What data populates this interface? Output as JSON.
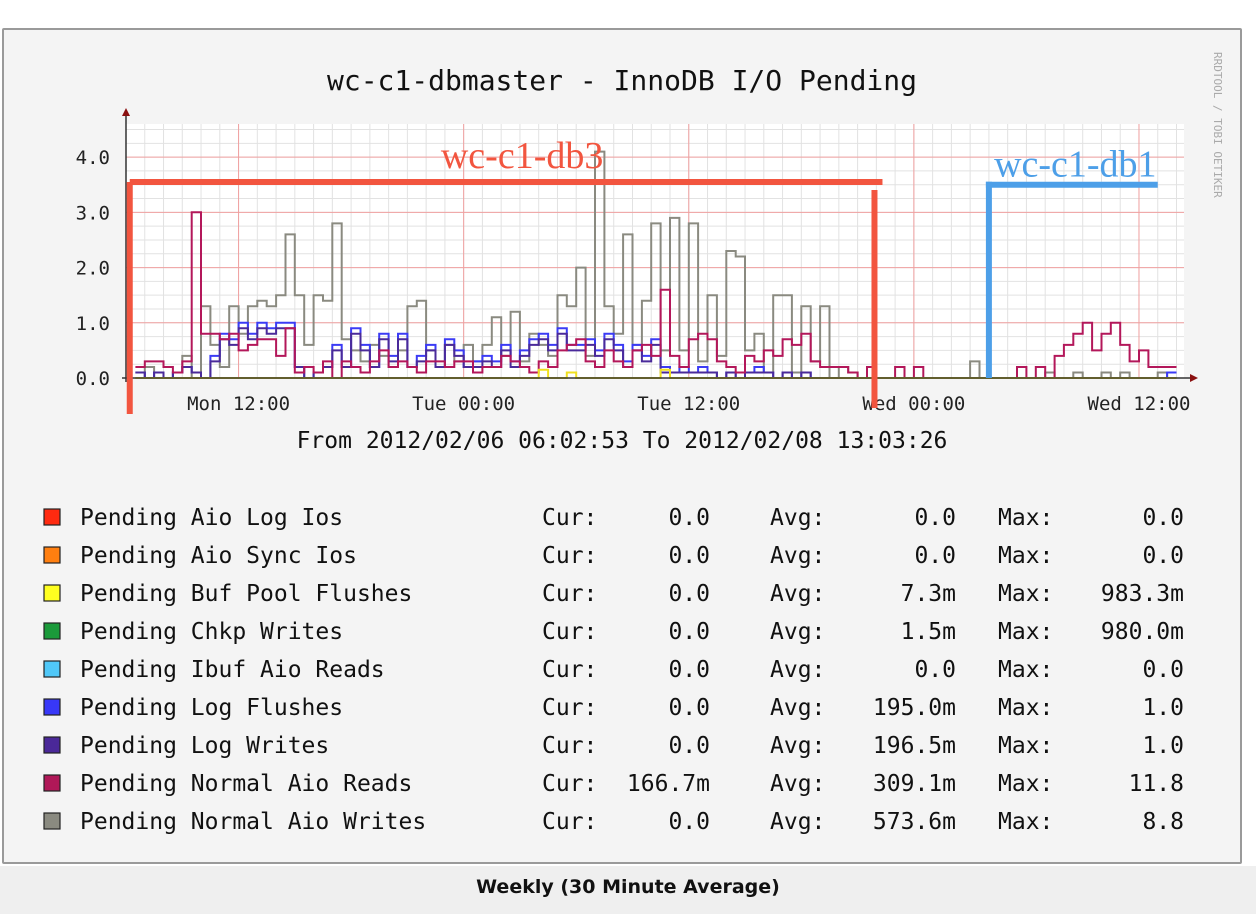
{
  "footer_label": "Weekly (30 Minute Average)",
  "chart_data": {
    "type": "line",
    "title": "wc-c1-dbmaster - InnoDB I/O Pending",
    "watermark": "RRDTOOL / TOBI OETIKER",
    "subtitle": "From 2012/02/06 06:02:53 To 2012/02/08 13:03:26",
    "ylim": [
      0,
      4.6
    ],
    "yticks": [
      "0.0",
      "1.0",
      "2.0",
      "3.0",
      "4.0"
    ],
    "xticks": [
      "Mon 12:00",
      "Tue 00:00",
      "Tue 12:00",
      "Wed 00:00",
      "Wed 12:00"
    ],
    "xtick_hours": [
      30,
      42,
      54,
      66,
      78
    ],
    "xlim_hours": [
      24,
      80.4
    ],
    "grid": true,
    "annotations": [
      {
        "label": "wc-c1-db3",
        "color": "#f2553f",
        "from_hour": 24.2,
        "to_hour": 63.9,
        "level": 3.55
      },
      {
        "label": "wc-c1-db1",
        "color": "#4d9fe8",
        "from_hour": 70.0,
        "to_hour": 79.0,
        "level": 3.5
      }
    ],
    "x_hours": [
      24.5,
      25.0,
      25.5,
      26.0,
      26.5,
      27.0,
      27.5,
      28.0,
      28.5,
      29.0,
      29.5,
      30.0,
      30.5,
      31.0,
      31.5,
      32.0,
      32.5,
      33.0,
      33.5,
      34.0,
      34.5,
      35.0,
      35.5,
      36.0,
      36.5,
      37.0,
      37.5,
      38.0,
      38.5,
      39.0,
      39.5,
      40.0,
      40.5,
      41.0,
      41.5,
      42.0,
      42.5,
      43.0,
      43.5,
      44.0,
      44.5,
      45.0,
      45.5,
      46.0,
      46.5,
      47.0,
      47.5,
      48.0,
      48.5,
      49.0,
      49.5,
      50.0,
      50.5,
      51.0,
      51.5,
      52.0,
      52.5,
      53.0,
      53.5,
      54.0,
      54.5,
      55.0,
      55.5,
      56.0,
      56.5,
      57.0,
      57.5,
      58.0,
      58.5,
      59.0,
      59.5,
      60.0,
      60.5,
      61.0,
      61.5,
      62.0,
      62.5,
      63.0,
      63.5,
      64.0,
      64.5,
      65.0,
      65.5,
      66.0,
      66.5,
      67.0,
      67.5,
      68.0,
      68.5,
      69.0,
      69.5,
      70.0,
      70.5,
      71.0,
      71.5,
      72.0,
      72.5,
      73.0,
      73.5,
      74.0,
      74.5,
      75.0,
      75.5,
      76.0,
      76.5,
      77.0,
      77.5,
      78.0,
      78.5,
      79.0,
      79.5,
      80.0
    ],
    "series": [
      {
        "name": "Pending Normal Aio Writes",
        "color": "#8a8a80",
        "values": [
          0.0,
          0.2,
          0.1,
          0.0,
          0.1,
          0.4,
          0.0,
          1.3,
          0.6,
          0.2,
          1.3,
          0.8,
          1.3,
          1.4,
          1.3,
          1.5,
          2.6,
          1.5,
          0.6,
          1.5,
          1.4,
          2.8,
          0.7,
          0.5,
          0.3,
          0.6,
          0.4,
          0.2,
          0.5,
          1.3,
          1.4,
          0.5,
          0.2,
          0.6,
          0.3,
          0.6,
          0.3,
          0.6,
          1.1,
          0.4,
          1.2,
          0.3,
          0.8,
          0.6,
          0.4,
          1.5,
          1.3,
          2.0,
          0.4,
          4.1,
          1.3,
          0.8,
          2.6,
          0.6,
          1.4,
          2.8,
          0.5,
          2.9,
          0.5,
          2.8,
          0.3,
          1.5,
          0.4,
          2.3,
          2.2,
          0.5,
          0.8,
          0.1,
          1.5,
          1.5,
          0.1,
          1.3,
          0.3,
          1.3,
          0.0,
          0.2,
          0.1,
          0.0,
          0.0,
          0.0,
          0.0,
          0.0,
          0.0,
          0.0,
          0.0,
          0.0,
          0.0,
          0.0,
          0.0,
          0.3,
          0.0,
          0.0,
          0.0,
          0.0,
          0.0,
          0.0,
          0.0,
          0.1,
          0.0,
          0.0,
          0.1,
          0.0,
          0.0,
          0.1,
          0.0,
          0.1,
          0.0,
          0.0,
          0.0,
          0.1,
          0.0
        ]
      },
      {
        "name": "Pending Log Flushes",
        "color": "#3b3bf5",
        "values": [
          0.1,
          0.0,
          0.1,
          0.0,
          0.1,
          0.2,
          0.1,
          0.0,
          0.4,
          0.8,
          0.7,
          1.0,
          0.8,
          1.0,
          0.9,
          1.0,
          1.0,
          0.2,
          0.0,
          0.1,
          0.2,
          0.6,
          0.2,
          0.9,
          0.6,
          0.2,
          0.8,
          0.4,
          0.8,
          0.2,
          0.4,
          0.6,
          0.2,
          0.7,
          0.5,
          0.2,
          0.3,
          0.4,
          0.3,
          0.6,
          0.3,
          0.5,
          0.7,
          0.8,
          0.6,
          0.9,
          0.6,
          0.6,
          0.7,
          0.5,
          0.8,
          0.6,
          0.3,
          0.6,
          0.4,
          0.7,
          0.2,
          0.1,
          0.2,
          0.1,
          0.2,
          0.1,
          0.0,
          0.1,
          0.0,
          0.1,
          0.2,
          0.1,
          0.0,
          0.1,
          0.0,
          0.1,
          0.0,
          0.0,
          0.0,
          0.0,
          0.0,
          0.0,
          0.0,
          0.0,
          0.0,
          0.0,
          0.0,
          0.0,
          0.0,
          0.0,
          0.0,
          0.0,
          0.0,
          0.0,
          0.0,
          0.0,
          0.0,
          0.0,
          0.0,
          0.0,
          0.0,
          0.0,
          0.0,
          0.0,
          0.0,
          0.0,
          0.0,
          0.0,
          0.0,
          0.0,
          0.0,
          0.0,
          0.0,
          0.0,
          0.1
        ]
      },
      {
        "name": "Pending Log Writes",
        "color": "#4a2a9a",
        "values": [
          0.1,
          0.0,
          0.1,
          0.0,
          0.1,
          0.2,
          0.1,
          0.0,
          0.3,
          0.7,
          0.6,
          0.9,
          0.7,
          0.9,
          0.8,
          0.9,
          0.9,
          0.2,
          0.0,
          0.1,
          0.2,
          0.5,
          0.2,
          0.8,
          0.5,
          0.2,
          0.7,
          0.3,
          0.7,
          0.2,
          0.3,
          0.5,
          0.2,
          0.6,
          0.4,
          0.2,
          0.2,
          0.3,
          0.2,
          0.5,
          0.2,
          0.4,
          0.6,
          0.7,
          0.5,
          0.8,
          0.5,
          0.5,
          0.6,
          0.4,
          0.7,
          0.5,
          0.2,
          0.5,
          0.3,
          0.6,
          0.1,
          0.1,
          0.1,
          0.1,
          0.1,
          0.1,
          0.0,
          0.1,
          0.0,
          0.1,
          0.1,
          0.1,
          0.0,
          0.1,
          0.0,
          0.1,
          0.0,
          0.0,
          0.0,
          0.0,
          0.0,
          0.0,
          0.0,
          0.0,
          0.0,
          0.0,
          0.0,
          0.0,
          0.0,
          0.0,
          0.0,
          0.0,
          0.0,
          0.0,
          0.0,
          0.0,
          0.0,
          0.0,
          0.0,
          0.0,
          0.0,
          0.0,
          0.0,
          0.0,
          0.0,
          0.0,
          0.0,
          0.0,
          0.0,
          0.0,
          0.0,
          0.0,
          0.0,
          0.0,
          0.0
        ]
      },
      {
        "name": "Pending Normal Aio Reads",
        "color": "#b3175a",
        "values": [
          0.2,
          0.3,
          0.3,
          0.2,
          0.1,
          0.3,
          3.0,
          0.8,
          0.8,
          0.7,
          0.8,
          0.5,
          0.6,
          0.7,
          0.7,
          0.4,
          0.9,
          0.1,
          0.2,
          0.1,
          0.3,
          0.0,
          0.3,
          0.2,
          0.1,
          0.3,
          0.5,
          0.2,
          0.3,
          0.2,
          0.1,
          0.3,
          0.3,
          0.2,
          0.3,
          0.3,
          0.1,
          0.2,
          0.2,
          0.4,
          0.3,
          0.2,
          0.1,
          0.3,
          0.2,
          0.5,
          0.6,
          0.7,
          0.3,
          0.2,
          0.5,
          0.3,
          0.2,
          0.5,
          0.6,
          0.4,
          1.6,
          0.4,
          0.2,
          0.7,
          0.8,
          0.7,
          0.3,
          0.2,
          0.1,
          0.4,
          0.3,
          0.5,
          0.4,
          0.7,
          0.6,
          0.8,
          0.3,
          0.2,
          0.2,
          0.2,
          0.1,
          0.0,
          0.2,
          0.0,
          0.0,
          0.2,
          0.0,
          0.2,
          0.0,
          0.0,
          0.0,
          0.0,
          0.0,
          0.0,
          0.0,
          0.0,
          0.0,
          0.0,
          0.2,
          0.0,
          0.2,
          0.0,
          0.4,
          0.6,
          0.8,
          1.0,
          0.5,
          0.8,
          1.0,
          0.6,
          0.3,
          0.5,
          0.2,
          0.2,
          0.2
        ]
      },
      {
        "name": "Pending Buf Pool Flushes",
        "color": "#f0e020",
        "values": [
          0.0,
          0.0,
          0.0,
          0.0,
          0.0,
          0.0,
          0.0,
          0.0,
          0.0,
          0.0,
          0.0,
          0.0,
          0.0,
          0.0,
          0.0,
          0.0,
          0.0,
          0.0,
          0.0,
          0.0,
          0.0,
          0.0,
          0.0,
          0.0,
          0.0,
          0.0,
          0.0,
          0.0,
          0.0,
          0.0,
          0.0,
          0.0,
          0.0,
          0.0,
          0.0,
          0.0,
          0.0,
          0.0,
          0.0,
          0.0,
          0.0,
          0.0,
          0.0,
          0.15,
          0.0,
          0.0,
          0.1,
          0.0,
          0.0,
          0.0,
          0.0,
          0.0,
          0.0,
          0.0,
          0.0,
          0.0,
          0.15,
          0.0,
          0.0,
          0.0,
          0.0,
          0.0,
          0.0,
          0.0,
          0.0,
          0.0,
          0.0,
          0.0,
          0.0,
          0.0,
          0.0,
          0.0,
          0.0,
          0.0,
          0.0,
          0.0,
          0.0,
          0.0,
          0.0,
          0.0,
          0.0,
          0.0,
          0.0,
          0.0,
          0.0,
          0.0,
          0.0,
          0.0,
          0.0,
          0.0,
          0.0,
          0.0,
          0.0,
          0.0,
          0.0,
          0.0,
          0.0,
          0.0,
          0.0,
          0.0,
          0.0,
          0.0,
          0.0,
          0.0,
          0.0,
          0.0,
          0.0,
          0.0,
          0.0,
          0.0,
          0.0
        ]
      }
    ],
    "legend": [
      {
        "label": "Pending Aio Log Ios",
        "color": "#ff2a10",
        "cur": "0.0",
        "avg": "0.0",
        "max": "0.0"
      },
      {
        "label": "Pending Aio Sync Ios",
        "color": "#ff7f10",
        "cur": "0.0",
        "avg": "0.0",
        "max": "0.0"
      },
      {
        "label": "Pending Buf Pool Flushes",
        "color": "#ffff20",
        "cur": "0.0",
        "avg": "7.3m",
        "max": "983.3m"
      },
      {
        "label": "Pending Chkp Writes",
        "color": "#1a9a3a",
        "cur": "0.0",
        "avg": "1.5m",
        "max": "980.0m"
      },
      {
        "label": "Pending Ibuf Aio Reads",
        "color": "#50c8f8",
        "cur": "0.0",
        "avg": "0.0",
        "max": "0.0"
      },
      {
        "label": "Pending Log Flushes",
        "color": "#3838f8",
        "cur": "0.0",
        "avg": "195.0m",
        "max": "1.0"
      },
      {
        "label": "Pending Log Writes",
        "color": "#4a2898",
        "cur": "0.0",
        "avg": "196.5m",
        "max": "1.0"
      },
      {
        "label": "Pending Normal Aio Reads",
        "color": "#b01858",
        "cur": "166.7m",
        "avg": "309.1m",
        "max": "11.8"
      },
      {
        "label": "Pending Normal Aio Writes",
        "color": "#8a8a80",
        "cur": "0.0",
        "avg": "573.6m",
        "max": "8.8"
      }
    ],
    "legend_stat_labels": {
      "cur": "Cur:",
      "avg": "Avg:",
      "max": "Max:"
    }
  }
}
